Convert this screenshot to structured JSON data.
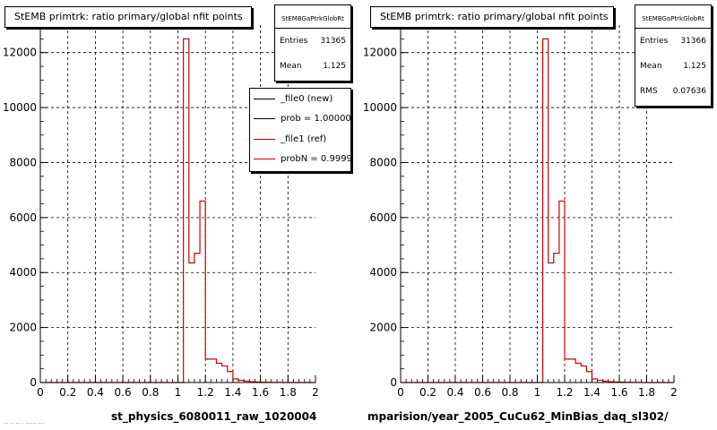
{
  "panels": [
    {
      "title": "StEMB primtrk: ratio primary/global nfit points",
      "stats": {
        "name": "StEMBGaPtrkGlobRt",
        "rows": [
          {
            "label": "Entries",
            "value": "31365"
          },
          {
            "label": "Mean",
            "value": "1.125"
          }
        ]
      },
      "legend": [
        {
          "text": "_file0 (new)",
          "color": "#000000"
        },
        {
          "text": "prob = 1.000000",
          "color": "#000000"
        },
        {
          "text": "_file1 (ref)",
          "color": "#cc0000"
        },
        {
          "text": "probN = 0.999999",
          "color": "#cc0000"
        }
      ],
      "bottom_label": "st_physics_6080011_raw_1020004"
    },
    {
      "title": "StEMB primtrk: ratio primary/global nfit points",
      "stats": {
        "name": "StEMBGaPtrkGlobRt",
        "rows": [
          {
            "label": "Entries",
            "value": "31366"
          },
          {
            "label": "Mean",
            "value": "1.125"
          },
          {
            "label": "RMS",
            "value": "0.07636"
          }
        ]
      },
      "bottom_label": "mparision/year_2005_CuCu62_MinBias_daq_sl302/"
    }
  ],
  "footer_text": "··· ·· ··· · ······ ····",
  "chart_data": [
    {
      "type": "histogram",
      "title": "StEMB primtrk: ratio primary/global nfit points",
      "xlim": [
        0,
        2
      ],
      "ylim": [
        0,
        13000
      ],
      "xticks": [
        "0",
        "0.2",
        "0.4",
        "0.6",
        "0.8",
        "1",
        "1.2",
        "1.4",
        "1.6",
        "1.8",
        "2"
      ],
      "yticks": [
        "0",
        "2000",
        "4000",
        "6000",
        "8000",
        "10000",
        "12000"
      ],
      "grid": true,
      "bin_width": 0.04,
      "bin_edges_start": 0,
      "line_color": "#cc0000",
      "series": [
        {
          "name": "_file1 (ref)",
          "values": [
            0,
            0,
            0,
            0,
            0,
            0,
            0,
            0,
            0,
            0,
            0,
            0,
            0,
            0,
            0,
            0,
            0,
            0,
            0,
            0,
            0,
            0,
            0,
            0,
            0,
            0,
            12500,
            4350,
            4700,
            6600,
            850,
            850,
            700,
            600,
            400,
            130,
            80,
            50,
            30,
            20,
            15,
            10,
            5,
            5,
            0,
            0,
            0,
            0,
            0,
            0
          ]
        }
      ]
    },
    {
      "type": "histogram",
      "title": "StEMB primtrk: ratio primary/global nfit points",
      "xlim": [
        0,
        2
      ],
      "ylim": [
        0,
        13000
      ],
      "xticks": [
        "0",
        "0.2",
        "0.4",
        "0.6",
        "0.8",
        "1",
        "1.2",
        "1.4",
        "1.6",
        "1.8",
        "2"
      ],
      "yticks": [
        "0",
        "2000",
        "4000",
        "6000",
        "8000",
        "10000",
        "12000"
      ],
      "grid": true,
      "bin_width": 0.04,
      "bin_edges_start": 0,
      "line_color": "#cc0000",
      "series": [
        {
          "name": "",
          "values": [
            0,
            0,
            0,
            0,
            0,
            0,
            0,
            0,
            0,
            0,
            0,
            0,
            0,
            0,
            0,
            0,
            0,
            0,
            0,
            0,
            0,
            0,
            0,
            0,
            0,
            0,
            12500,
            4350,
            4700,
            6600,
            850,
            850,
            700,
            600,
            400,
            130,
            80,
            50,
            30,
            20,
            15,
            10,
            5,
            5,
            0,
            0,
            0,
            0,
            0,
            0
          ]
        }
      ]
    }
  ]
}
